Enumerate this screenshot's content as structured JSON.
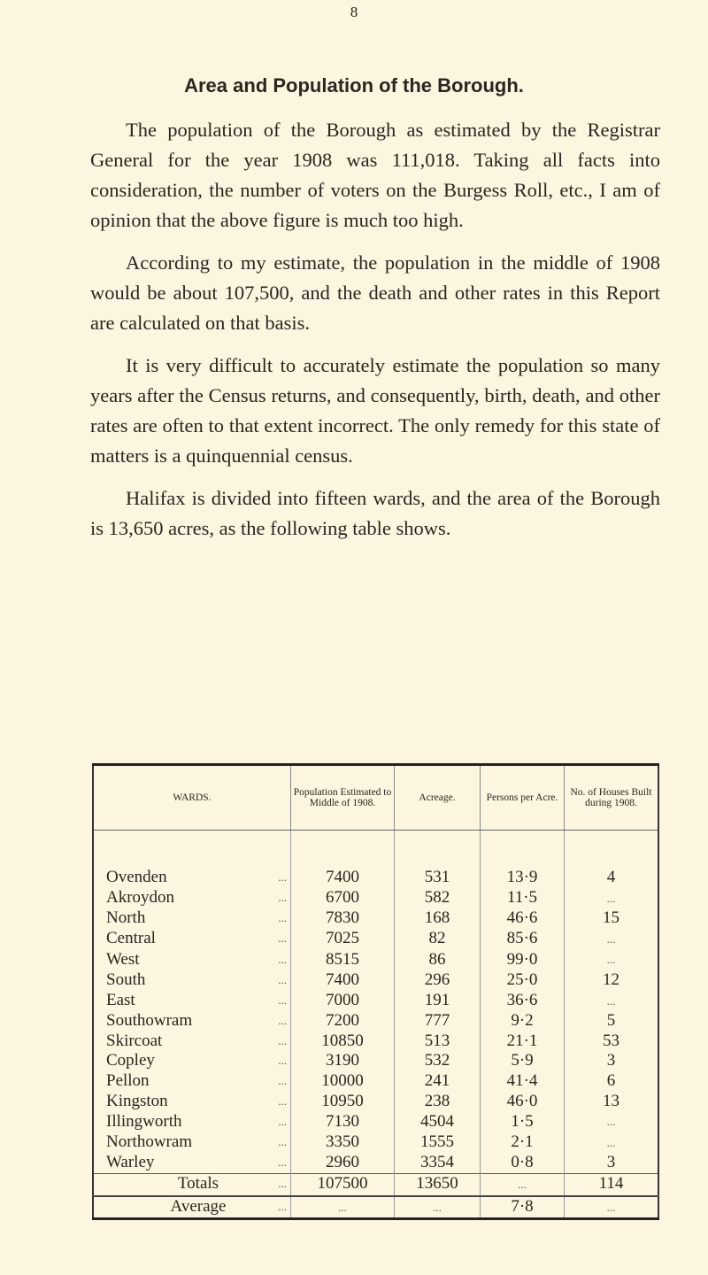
{
  "page_number": "8",
  "title": "Area and Population of the Borough.",
  "paragraphs": [
    "The population of the Borough as estimated by the Registrar General for the year 1908 was 111,018. Taking all facts into consideration, the number of voters on the Burgess Roll, etc., I am of opinion that the above figure is much too high.",
    "According to my estimate, the population in the middle of 1908 would be about 107,500, and the death and other rates in this Report are calculated on that basis.",
    "It is very difficult to accurately estimate the population so many years after the Census returns, and consequently, birth, death, and other rates are often to that extent incorrect. The only remedy for this state of matters is a quinquennial census.",
    "Halifax is divided into fifteen wards, and the area of the Borough is 13,650 acres, as the following table shows."
  ],
  "table": {
    "headers": [
      "WARDS.",
      "Population Estimated to Middle of 1908.",
      "Acreage.",
      "Persons per Acre.",
      "No. of Houses Built during 1908."
    ],
    "rows": [
      [
        "Ovenden",
        "7400",
        "531",
        "13·9",
        "4"
      ],
      [
        "Akroydon",
        "6700",
        "582",
        "11·5",
        "..."
      ],
      [
        "North",
        "7830",
        "168",
        "46·6",
        "15"
      ],
      [
        "Central",
        "7025",
        "82",
        "85·6",
        "..."
      ],
      [
        "West",
        "8515",
        "86",
        "99·0",
        "..."
      ],
      [
        "South",
        "7400",
        "296",
        "25·0",
        "12"
      ],
      [
        "East",
        "7000",
        "191",
        "36·6",
        "..."
      ],
      [
        "Southowram",
        "7200",
        "777",
        "9·2",
        "5"
      ],
      [
        "Skircoat",
        "10850",
        "513",
        "21·1",
        "53"
      ],
      [
        "Copley",
        "3190",
        "532",
        "5·9",
        "3"
      ],
      [
        "Pellon",
        "10000",
        "241",
        "41·4",
        "6"
      ],
      [
        "Kingston",
        "10950",
        "238",
        "46·0",
        "13"
      ],
      [
        "Illingworth",
        "7130",
        "4504",
        "1·5",
        "..."
      ],
      [
        "Northowram",
        "3350",
        "1555",
        "2·1",
        "..."
      ],
      [
        "Warley",
        "2960",
        "3354",
        "0·8",
        "3"
      ]
    ],
    "totals": [
      "Totals",
      "107500",
      "13650",
      "...",
      "114"
    ],
    "average": [
      "Average",
      "...",
      "...",
      "7·8",
      "..."
    ],
    "leader": "..."
  }
}
